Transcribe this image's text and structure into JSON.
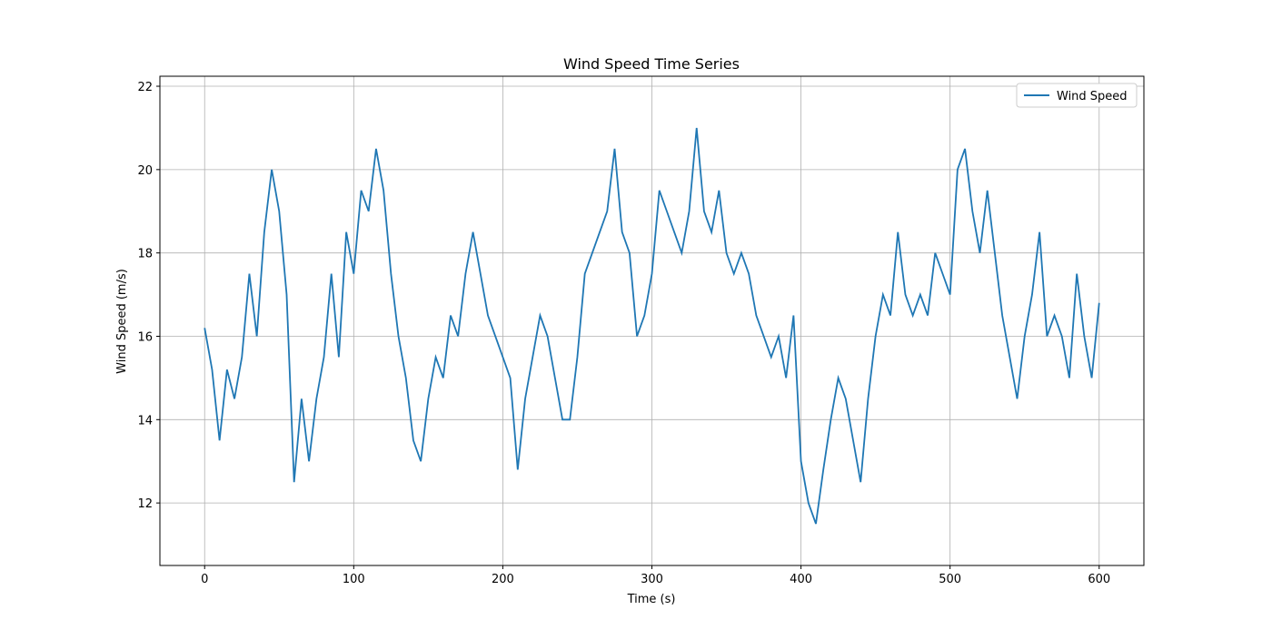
{
  "chart_data": {
    "type": "line",
    "title": "Wind Speed Time Series",
    "xlabel": "Time (s)",
    "ylabel": "Wind Speed (m/s)",
    "x": [
      0,
      5,
      10,
      15,
      20,
      25,
      30,
      35,
      40,
      45,
      50,
      55,
      60,
      65,
      70,
      75,
      80,
      85,
      90,
      95,
      100,
      105,
      110,
      115,
      120,
      125,
      130,
      135,
      140,
      145,
      150,
      155,
      160,
      165,
      170,
      175,
      180,
      185,
      190,
      195,
      200,
      205,
      210,
      215,
      220,
      225,
      230,
      235,
      240,
      245,
      250,
      255,
      260,
      265,
      270,
      275,
      280,
      285,
      290,
      295,
      300,
      305,
      310,
      315,
      320,
      325,
      330,
      335,
      340,
      345,
      350,
      355,
      360,
      365,
      370,
      375,
      380,
      385,
      390,
      395,
      400,
      405,
      410,
      415,
      420,
      425,
      430,
      435,
      440,
      445,
      450,
      455,
      460,
      465,
      470,
      475,
      480,
      485,
      490,
      495,
      500,
      505,
      510,
      515,
      520,
      525,
      530,
      535,
      540,
      545,
      550,
      555,
      560,
      565,
      570,
      575,
      580,
      585,
      590,
      595,
      600
    ],
    "series": [
      {
        "name": "Wind Speed",
        "color": "#1f77b4",
        "values": [
          16.2,
          15.2,
          13.5,
          15.2,
          14.5,
          15.5,
          17.5,
          16,
          18.5,
          20,
          19,
          17,
          12.5,
          14.5,
          13,
          14.5,
          15.5,
          17.5,
          15.5,
          18.5,
          17.5,
          19.5,
          19,
          20.5,
          19.5,
          17.5,
          16,
          15,
          13.5,
          13,
          14.5,
          15.5,
          15,
          16.5,
          16,
          17.5,
          18.5,
          17.5,
          16.5,
          16,
          15.5,
          15,
          12.8,
          14.5,
          15.5,
          16.5,
          16,
          15,
          14,
          14,
          15.5,
          17.5,
          18,
          18.5,
          19,
          20.5,
          18.5,
          18,
          16,
          16.5,
          17.5,
          19.5,
          19,
          18.5,
          18,
          19,
          21,
          19,
          18.5,
          19.5,
          18,
          17.5,
          18,
          17.5,
          16.5,
          16,
          15.5,
          16,
          15,
          16.5,
          13,
          12,
          11.5,
          12.8,
          14,
          15,
          14.5,
          13.5,
          12.5,
          14.5,
          16,
          17,
          16.5,
          18.5,
          17,
          16.5,
          17,
          16.5,
          18,
          17.5,
          17,
          20,
          20.5,
          19,
          18,
          19.5,
          18,
          16.5,
          15.5,
          14.5,
          16,
          17,
          18.5,
          16,
          16.5,
          16,
          15,
          17.5,
          16,
          15,
          16.8
        ]
      }
    ],
    "xlim": [
      -30,
      630
    ],
    "ylim": [
      10.5,
      22.24
    ],
    "xticks": [
      0,
      100,
      200,
      300,
      400,
      500,
      600
    ],
    "yticks": [
      12,
      14,
      16,
      18,
      20,
      22
    ],
    "grid": true,
    "legend": "upper right"
  }
}
